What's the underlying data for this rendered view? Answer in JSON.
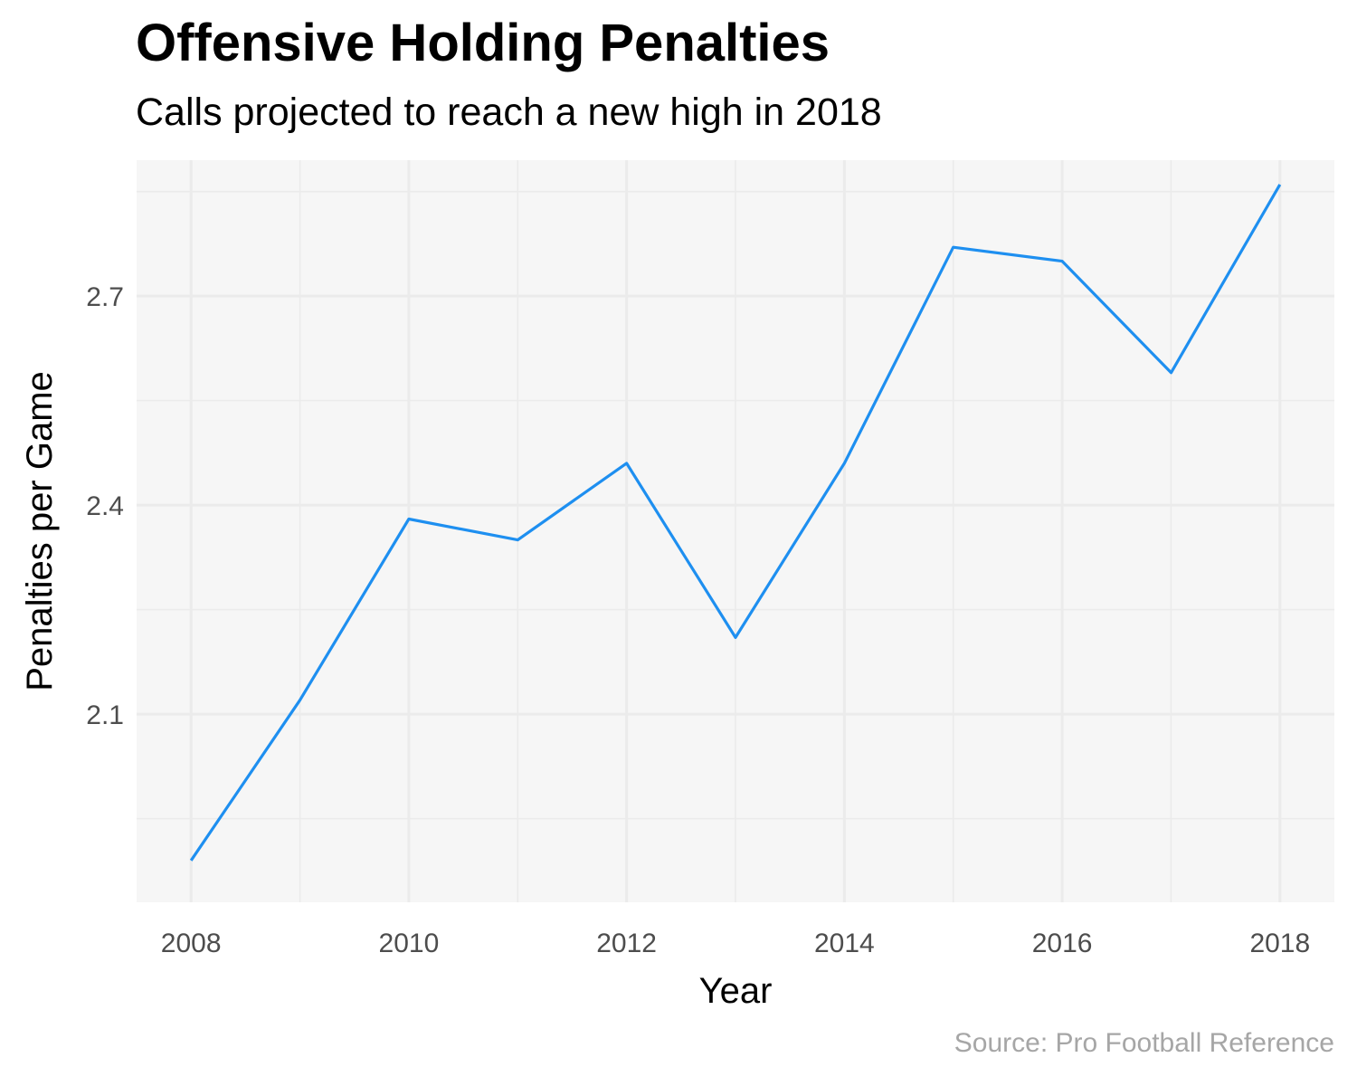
{
  "title": "Offensive Holding Penalties",
  "subtitle": "Calls projected to reach a new high in 2018",
  "caption": "Source: Pro Football Reference",
  "colors": {
    "line": "#1e8ff0",
    "panel": "#f6f6f6",
    "grid": "#ebebeb"
  },
  "chart_data": {
    "type": "line",
    "title": "Offensive Holding Penalties",
    "subtitle": "Calls projected to reach a new high in 2018",
    "xlabel": "Year",
    "ylabel": "Penalties per Game",
    "x": [
      2008,
      2009,
      2010,
      2011,
      2012,
      2013,
      2014,
      2015,
      2016,
      2017,
      2018
    ],
    "series": [
      {
        "values": [
          1.89,
          2.12,
          2.38,
          2.35,
          2.46,
          2.21,
          2.46,
          2.77,
          2.75,
          2.59,
          2.86
        ]
      }
    ],
    "xlim": [
      2007.5,
      2018.5
    ],
    "ylim": [
      1.83,
      2.895
    ],
    "x_ticks": [
      2008,
      2010,
      2012,
      2014,
      2016,
      2018
    ],
    "x_tick_labels": [
      "2008",
      "2010",
      "2012",
      "2014",
      "2016",
      "2018"
    ],
    "y_ticks": [
      2.1,
      2.4,
      2.7
    ],
    "y_tick_labels": [
      "2.1",
      "2.4",
      "2.7"
    ],
    "y_minor_ticks": [
      1.95,
      2.25,
      2.55,
      2.85
    ],
    "x_minor_ticks": [
      2009,
      2011,
      2013,
      2015,
      2017
    ],
    "grid": true,
    "legend": "none"
  }
}
